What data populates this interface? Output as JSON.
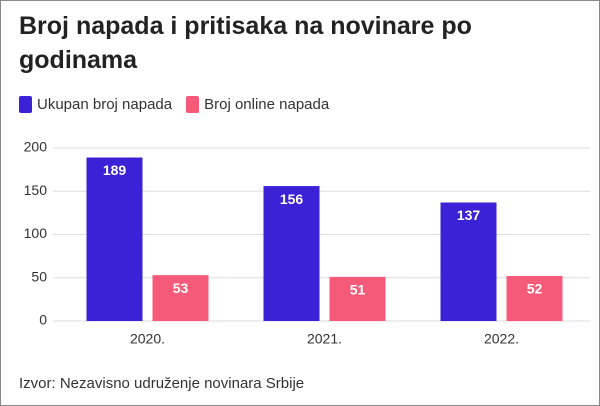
{
  "chart_data": {
    "type": "bar",
    "title": "Broj napada i pritisaka na novinare po godinama",
    "source": "Izvor: Nezavisno udruženje novinara Srbije",
    "categories": [
      "2020.",
      "2021.",
      "2022."
    ],
    "series": [
      {
        "name": "Ukupan broj napada",
        "color": "#3b22d6",
        "values": [
          189,
          156,
          137
        ]
      },
      {
        "name": "Broj online napada",
        "color": "#f55a78",
        "values": [
          53,
          51,
          52
        ]
      }
    ],
    "ylim": [
      0,
      200
    ],
    "yticks": [
      0,
      50,
      100,
      150,
      200
    ],
    "grid": true
  }
}
